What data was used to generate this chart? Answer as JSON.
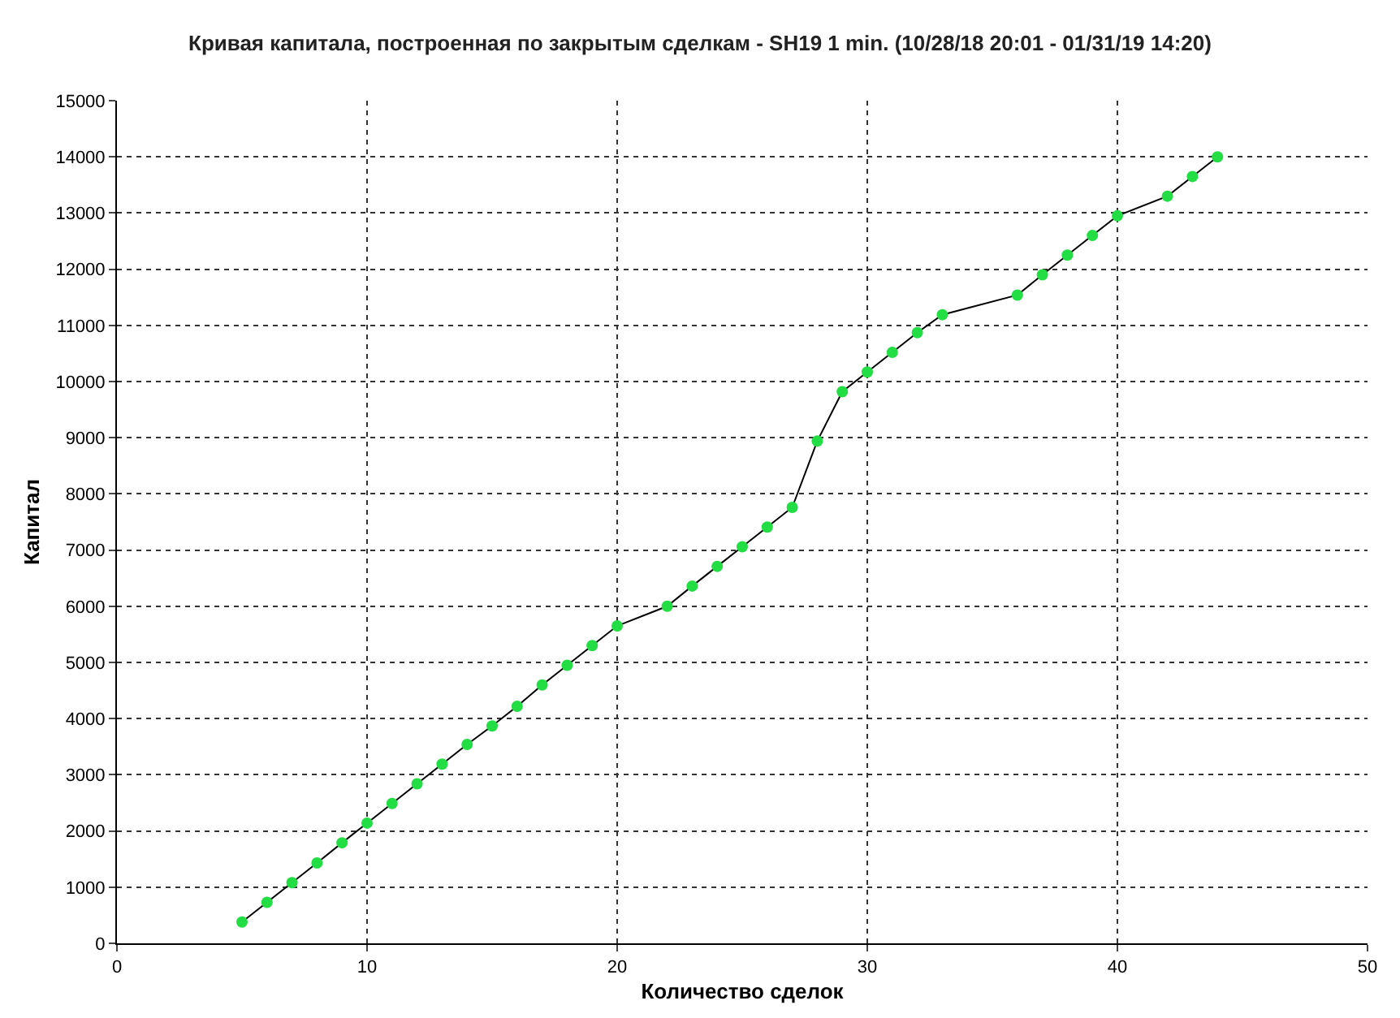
{
  "chart_data": {
    "type": "line",
    "title": "Кривая капитала, построенная по закрытым сделкам - SH19 1 min. (10/28/18 20:01 - 01/31/19 14:20)",
    "xlabel": "Количество сделок",
    "ylabel": "Капитал",
    "x": [
      5,
      6,
      7,
      8,
      9,
      10,
      11,
      12,
      13,
      14,
      15,
      16,
      17,
      18,
      19,
      20,
      22,
      23,
      24,
      25,
      26,
      27,
      28,
      29,
      30,
      31,
      32,
      33,
      36,
      37,
      38,
      39,
      40,
      42,
      43,
      44
    ],
    "series": [
      {
        "color": "#22dd44",
        "values": [
          380,
          730,
          1080,
          1430,
          1790,
          2140,
          2490,
          2840,
          3190,
          3540,
          3870,
          4220,
          4600,
          4950,
          5300,
          5650,
          6000,
          6360,
          6710,
          7060,
          7410,
          7760,
          8940,
          9820,
          10170,
          10520,
          10870,
          11190,
          11540,
          11900,
          12250,
          12600,
          12950,
          13300,
          13650,
          14000
        ]
      }
    ],
    "xlim": [
      0,
      50
    ],
    "xticks": [
      0,
      10,
      20,
      30,
      40,
      50
    ],
    "ylim": [
      0,
      15000
    ],
    "yticks": [
      0,
      1000,
      2000,
      3000,
      4000,
      5000,
      6000,
      7000,
      8000,
      9000,
      10000,
      11000,
      12000,
      13000,
      14000,
      15000
    ],
    "grid": true,
    "marker": "circle",
    "line_style": "solid",
    "legend": false
  }
}
